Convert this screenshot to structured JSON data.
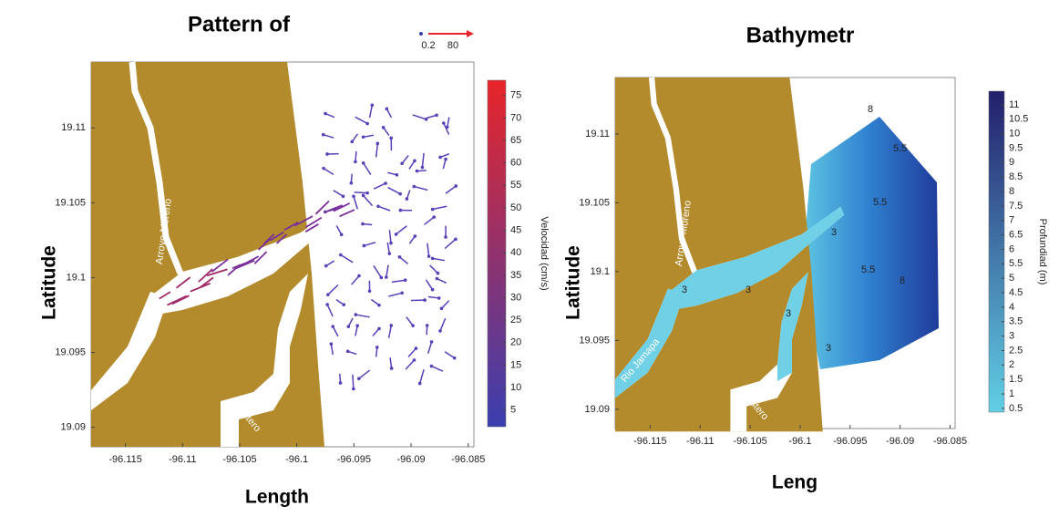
{
  "panels": [
    {
      "title": "Pattern of",
      "x_label": "Length",
      "y_label": "Latitude",
      "xlim": [
        -96.118,
        -96.0845
      ],
      "xticks": [
        -96.115,
        -96.11,
        -96.105,
        -96.1,
        -96.095,
        -96.09,
        -96.085
      ],
      "ylim": [
        19.0887,
        19.1144
      ],
      "yticks": [
        19.09,
        19.095,
        19.1,
        19.105,
        19.11
      ],
      "colorbar": {
        "label": "Velocidad (cm/s)",
        "lim": [
          1.3,
          78.4
        ],
        "ticks": [
          5,
          10,
          15,
          20,
          25,
          30,
          35,
          40,
          45,
          50,
          55,
          60,
          65,
          70,
          75
        ],
        "colors": [
          "#3a3fb0",
          "#e8252a"
        ]
      },
      "reference_arrows": {
        "min": 0.2,
        "max": 80
      },
      "places": [
        "Arroyo Moreno",
        "Rio Jamapa",
        "El Estero"
      ]
    },
    {
      "title": "Bathymetr",
      "x_label": "Leng",
      "y_label": "Latitude",
      "xlim": [
        -96.1185,
        -96.0845
      ],
      "xticks": [
        -96.115,
        -96.11,
        -96.105,
        -96.1,
        -96.095,
        -96.09,
        -96.085
      ],
      "ylim": [
        19.0886,
        19.1141
      ],
      "yticks": [
        19.09,
        19.095,
        19.1,
        19.105,
        19.11
      ],
      "colorbar": {
        "label": "Profundiad (m)",
        "lim": [
          0.37,
          11.47
        ],
        "ticks": [
          0.5,
          1,
          1.5,
          2,
          2.5,
          3,
          3.5,
          4,
          4.5,
          5,
          5.5,
          6,
          6.5,
          7,
          7.5,
          8,
          8.5,
          9,
          9.5,
          10,
          10.5,
          11
        ],
        "colors": [
          "#62cfe6",
          "#231e6b"
        ]
      },
      "places": [
        "Arroyo Moreno",
        "Rio Jamapa",
        "El Estero"
      ],
      "contour_labels": [
        "3",
        "3",
        "3",
        "3",
        "3",
        "5.5",
        "5.5",
        "5.5",
        "8",
        "8"
      ]
    }
  ]
}
